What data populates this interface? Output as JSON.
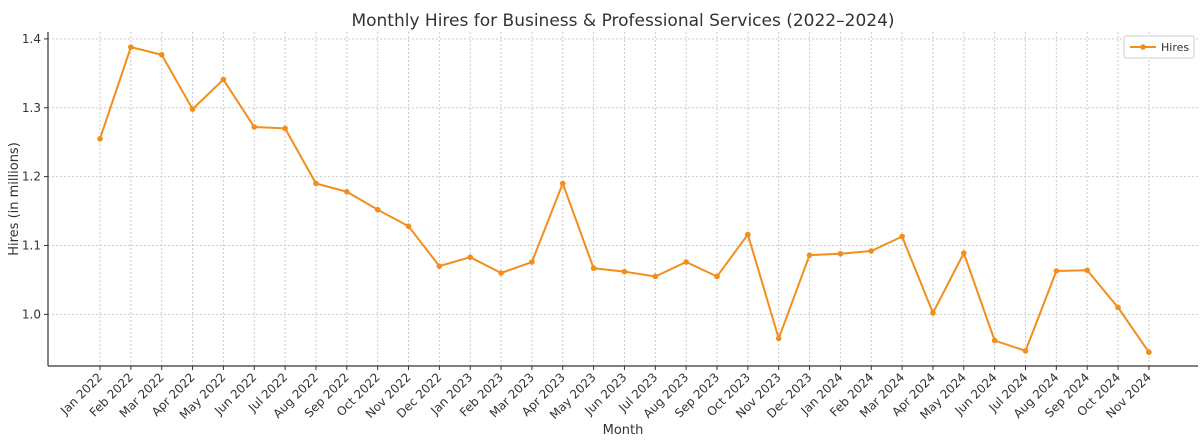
{
  "chart_data": {
    "type": "line",
    "title": "Monthly Hires for Business & Professional Services (2022–2024)",
    "xlabel": "Month",
    "ylabel": "Hires (in millions)",
    "ylim": [
      0.925,
      1.41
    ],
    "yticks": [
      1.0,
      1.1,
      1.2,
      1.3,
      1.4
    ],
    "yticks_labels": [
      "1.0",
      "1.1",
      "1.2",
      "1.3",
      "1.4"
    ],
    "grid": true,
    "legend_position": "top-right",
    "categories": [
      "Jan 2022",
      "Feb 2022",
      "Mar 2022",
      "Apr 2022",
      "May 2022",
      "Jun 2022",
      "Jul 2022",
      "Aug 2022",
      "Sep 2022",
      "Oct 2022",
      "Nov 2022",
      "Dec 2022",
      "Jan 2023",
      "Feb 2023",
      "Mar 2023",
      "Apr 2023",
      "May 2023",
      "Jun 2023",
      "Jul 2023",
      "Aug 2023",
      "Sep 2023",
      "Oct 2023",
      "Nov 2023",
      "Dec 2023",
      "Jan 2024",
      "Feb 2024",
      "Mar 2024",
      "Apr 2024",
      "May 2024",
      "Jun 2024",
      "Jul 2024",
      "Aug 2024",
      "Sep 2024",
      "Oct 2024",
      "Nov 2024"
    ],
    "series": [
      {
        "name": "Hires",
        "color": "#f28e1c",
        "values": [
          1.255,
          1.388,
          1.377,
          1.298,
          1.341,
          1.272,
          1.27,
          1.19,
          1.178,
          1.152,
          1.128,
          1.07,
          1.083,
          1.06,
          1.076,
          1.19,
          1.067,
          1.062,
          1.055,
          1.076,
          1.055,
          1.116,
          0.965,
          1.086,
          1.088,
          1.092,
          1.113,
          1.002,
          1.089,
          0.962,
          0.947,
          1.063,
          1.064,
          1.01,
          0.945
        ]
      }
    ]
  }
}
